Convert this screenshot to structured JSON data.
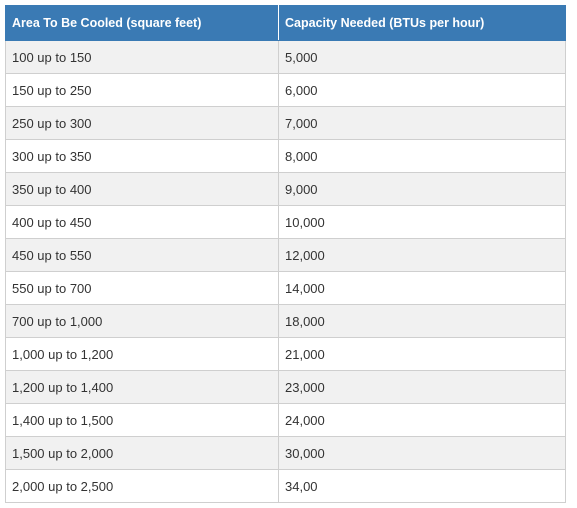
{
  "table": {
    "header": [
      "Area To Be Cooled (square feet)",
      "Capacity Needed (BTUs per hour)"
    ],
    "rows": [
      [
        "100 up to 150",
        "5,000"
      ],
      [
        "150 up to 250",
        "6,000"
      ],
      [
        "250 up to 300",
        "7,000"
      ],
      [
        "300 up to 350",
        "8,000"
      ],
      [
        "350 up to 400",
        "9,000"
      ],
      [
        "400 up to 450",
        "10,000"
      ],
      [
        "450 up to 550",
        "12,000"
      ],
      [
        "550 up to 700",
        "14,000"
      ],
      [
        "700 up to 1,000",
        "18,000"
      ],
      [
        "1,000 up to 1,200",
        "21,000"
      ],
      [
        "1,200 up to 1,400",
        "23,000"
      ],
      [
        "1,400 up to 1,500",
        "24,000"
      ],
      [
        "1,500 up to 2,000",
        "30,000"
      ],
      [
        "2,000 up to 2,500",
        "34,00"
      ]
    ]
  }
}
